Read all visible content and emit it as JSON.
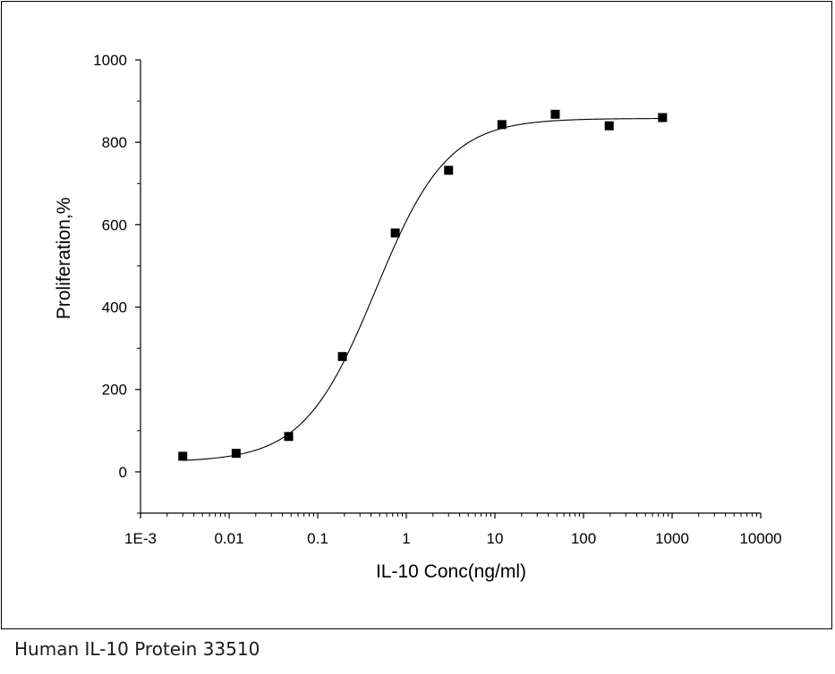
{
  "caption": "Human IL-10 Protein 33510",
  "colors": {
    "axis": "#000000",
    "marker": "#000000",
    "curve": "#000000",
    "frame": "#000000"
  },
  "chart_data": {
    "type": "scatter",
    "title": "",
    "xlabel": "IL-10 Conc(ng/ml)",
    "ylabel": "Proliferation,%",
    "xscale": "log",
    "xlim": [
      0.001,
      10000
    ],
    "ylim": [
      -100,
      1000
    ],
    "xticks": [
      {
        "value": 0.001,
        "label": "1E-3"
      },
      {
        "value": 0.01,
        "label": "0.01"
      },
      {
        "value": 0.1,
        "label": "0.1"
      },
      {
        "value": 1,
        "label": "1"
      },
      {
        "value": 10,
        "label": "10"
      },
      {
        "value": 100,
        "label": "100"
      },
      {
        "value": 1000,
        "label": "1000"
      },
      {
        "value": 10000,
        "label": "10000"
      }
    ],
    "yticks": [
      {
        "value": 0,
        "label": "0"
      },
      {
        "value": 200,
        "label": "200"
      },
      {
        "value": 400,
        "label": "400"
      },
      {
        "value": 600,
        "label": "600"
      },
      {
        "value": 800,
        "label": "800"
      },
      {
        "value": 1000,
        "label": "1000"
      }
    ],
    "grid": false,
    "legend": "none",
    "marker": "square",
    "series": [
      {
        "x": [
          0.003,
          0.012,
          0.047,
          0.19,
          0.75,
          3.0,
          12,
          48,
          195,
          780
        ],
        "y": [
          38,
          45,
          86,
          280,
          580,
          732,
          843,
          868,
          840,
          860
        ]
      }
    ],
    "fit": {
      "type": "sigmoidal logistic",
      "bottom": 24,
      "top": 858,
      "ec50": 0.45,
      "hill": 1.07,
      "x_range": [
        0.003,
        780
      ]
    }
  }
}
